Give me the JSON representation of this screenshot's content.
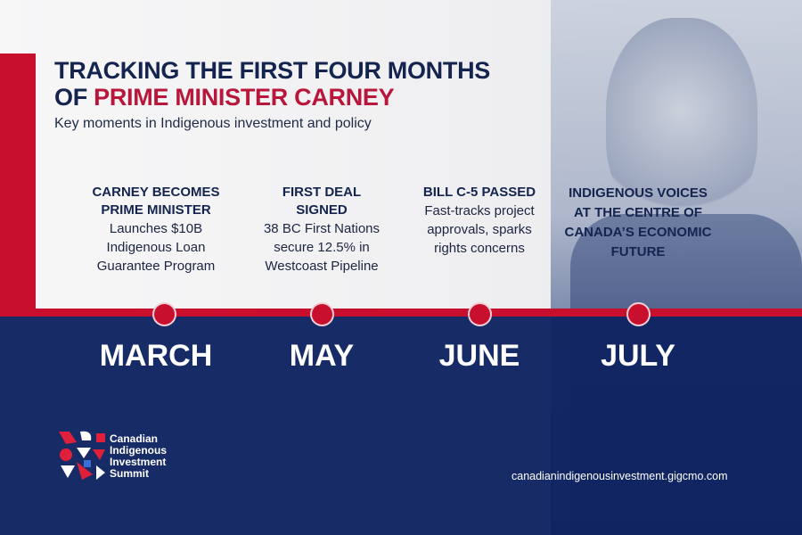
{
  "header": {
    "title_line1": "TRACKING THE FIRST FOUR MONTHS",
    "title_line2_prefix": "OF ",
    "title_line2_highlight": "PRIME MINISTER CARNEY",
    "subtitle": "Key moments in Indigenous investment and policy"
  },
  "timeline": [
    {
      "month": "MARCH",
      "heading": "CARNEY BECOMES PRIME MINISTER",
      "body": "Launches $10B Indigenous Loan Guarantee Program"
    },
    {
      "month": "MAY",
      "heading": "FIRST DEAL SIGNED",
      "body": "38 BC First Nations secure 12.5% in Westcoast Pipeline"
    },
    {
      "month": "JUNE",
      "heading": "BILL C-5 PASSED",
      "body": "Fast-tracks project approvals, sparks rights concerns"
    },
    {
      "month": "JULY",
      "heading": "INDIGENOUS VOICES AT THE CENTRE OF CANADA’S ECONOMIC FUTURE",
      "body": ""
    }
  ],
  "footer": {
    "logo_text": [
      "Canadian",
      "Indigenous",
      "Investment",
      "Summit"
    ],
    "url": "canadianindigenousinvestment.gigcmo.com"
  },
  "colors": {
    "navy": "#0f2461",
    "red": "#c8102e",
    "title_navy": "#14244f"
  }
}
